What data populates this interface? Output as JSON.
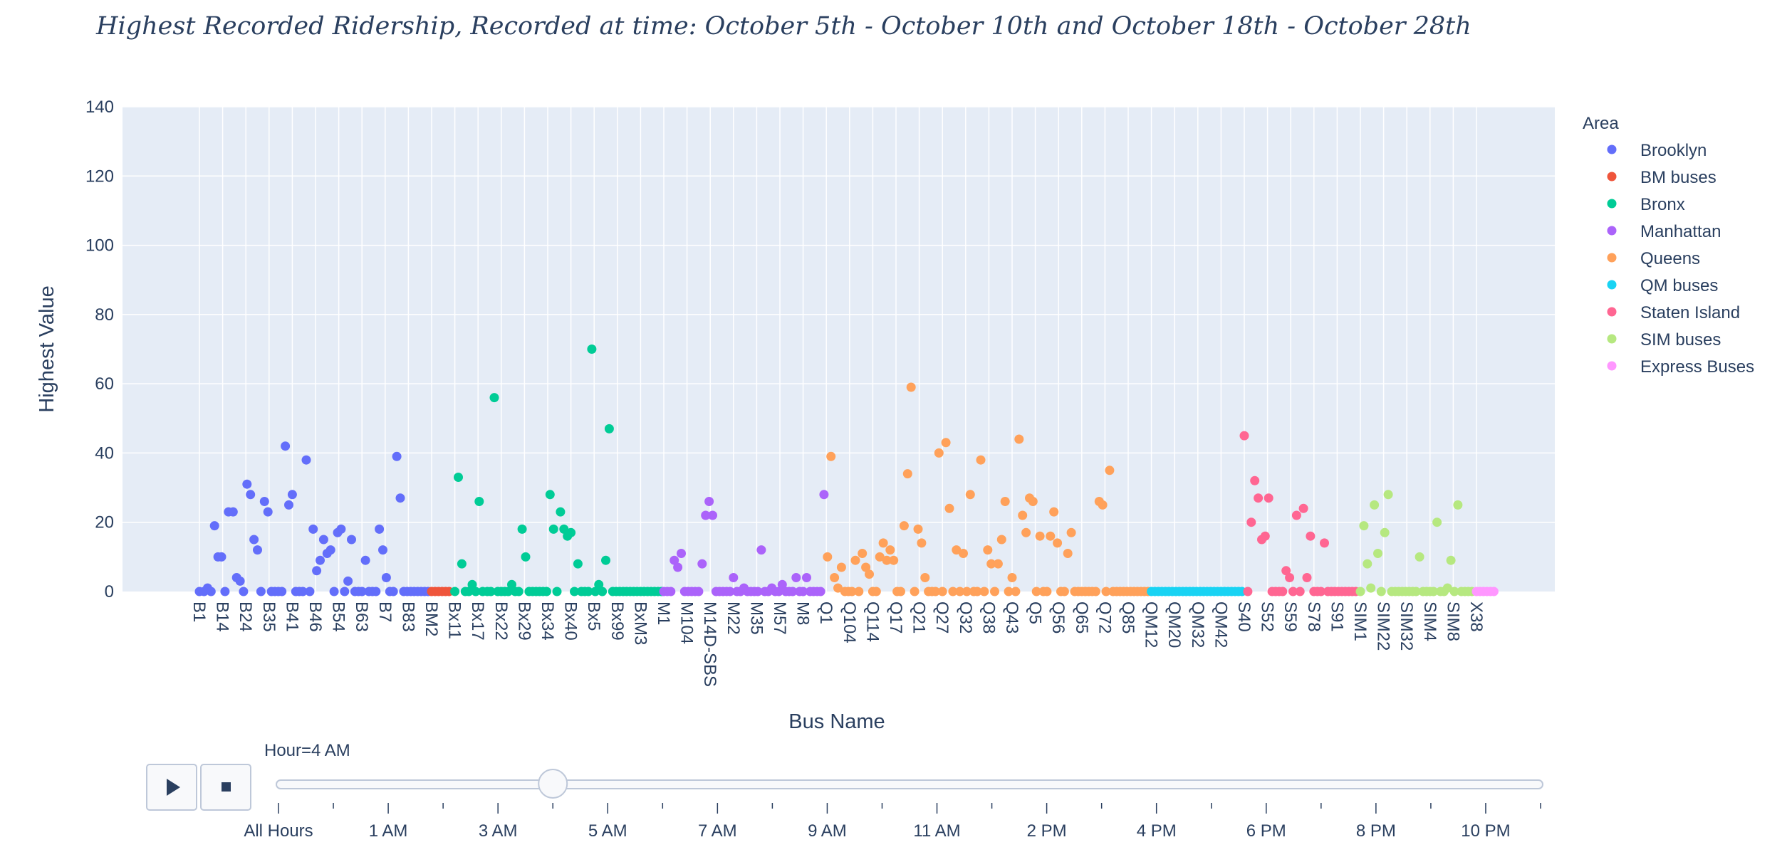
{
  "chart_data": {
    "type": "scatter",
    "title": "Highest Recorded Ridership, Recorded at time: October 5th - October 10th and October 18th - October 28th",
    "xlabel": "Bus Name",
    "ylabel": "Highest Value",
    "ylim": [
      0,
      140
    ],
    "yticks": [
      0,
      20,
      40,
      60,
      80,
      100,
      120,
      140
    ],
    "grid": true,
    "legend_title": "Area",
    "legend_position": "right",
    "categories": [
      "B1",
      "B14",
      "B24",
      "B35",
      "B41",
      "B46",
      "B54",
      "B63",
      "B7",
      "B83",
      "BM2",
      "Bx11",
      "Bx17",
      "Bx22",
      "Bx29",
      "Bx34",
      "Bx40",
      "Bx5",
      "Bx99",
      "BxM3",
      "M1",
      "M104",
      "M14D-SBS",
      "M22",
      "M35",
      "M57",
      "M8",
      "Q1",
      "Q104",
      "Q114",
      "Q17",
      "Q21",
      "Q27",
      "Q32",
      "Q38",
      "Q43",
      "Q5",
      "Q56",
      "Q65",
      "Q72",
      "Q85",
      "QM12",
      "QM20",
      "QM32",
      "QM42",
      "S40",
      "S52",
      "S59",
      "S78",
      "S91",
      "SIM1",
      "SIM22",
      "SIM32",
      "SIM4",
      "SIM8",
      "X38"
    ],
    "series": [
      {
        "name": "Brooklyn",
        "color": "#636efa",
        "x": [
          0.0,
          0.2,
          0.35,
          0.5,
          0.65,
          0.8,
          0.95,
          1.1,
          1.25,
          1.45,
          1.6,
          1.75,
          1.9,
          2.05,
          2.2,
          2.35,
          2.5,
          2.65,
          2.8,
          2.95,
          3.1,
          3.25,
          3.4,
          3.55,
          3.7,
          3.85,
          4.0,
          4.15,
          4.3,
          4.45,
          4.6,
          4.75,
          4.9,
          5.05,
          5.2,
          5.35,
          5.5,
          5.65,
          5.8,
          5.95,
          6.1,
          6.25,
          6.4,
          6.55,
          6.7,
          6.85,
          7.0,
          7.15,
          7.3,
          7.45,
          7.6,
          7.75,
          7.9,
          8.05,
          8.2,
          8.35,
          8.5,
          8.65,
          8.8,
          8.95,
          9.1,
          9.25,
          9.4,
          9.55,
          9.7,
          9.85
        ],
        "y": [
          0,
          0,
          1,
          0,
          19,
          10,
          10,
          0,
          23,
          23,
          4,
          3,
          0,
          31,
          28,
          15,
          12,
          0,
          26,
          23,
          0,
          0,
          0,
          0,
          42,
          25,
          28,
          0,
          0,
          0,
          38,
          0,
          18,
          6,
          9,
          15,
          11,
          12,
          0,
          17,
          18,
          0,
          3,
          15,
          0,
          0,
          0,
          9,
          0,
          0,
          0,
          18,
          12,
          4,
          0,
          0,
          39,
          27,
          0,
          0,
          0,
          0,
          0,
          0,
          0,
          0
        ]
      },
      {
        "name": "BM buses",
        "color": "#ef553b",
        "x": [
          10.0,
          10.15,
          10.3,
          10.45,
          10.6,
          10.75
        ],
        "y": [
          0,
          0,
          0,
          0,
          0,
          0
        ]
      },
      {
        "name": "Bronx",
        "color": "#00cc96",
        "x": [
          11.0,
          11.15,
          11.3,
          11.45,
          11.6,
          11.75,
          11.9,
          12.05,
          12.2,
          12.4,
          12.55,
          12.7,
          12.85,
          13.0,
          13.15,
          13.3,
          13.45,
          13.6,
          13.75,
          13.9,
          14.05,
          14.2,
          14.35,
          14.5,
          14.65,
          14.8,
          14.95,
          15.1,
          15.25,
          15.4,
          15.55,
          15.7,
          15.85,
          16.0,
          16.15,
          16.3,
          16.45,
          16.6,
          16.75,
          16.9,
          17.05,
          17.2,
          17.35,
          17.5,
          17.65,
          17.8,
          17.95,
          18.1,
          18.25,
          18.4,
          18.55,
          18.7,
          18.85,
          19.0,
          19.15,
          19.3,
          19.45,
          19.6,
          19.75,
          19.9
        ],
        "y": [
          0,
          33,
          8,
          0,
          0,
          2,
          0,
          26,
          0,
          0,
          0,
          56,
          0,
          0,
          0,
          0,
          2,
          0,
          0,
          18,
          10,
          0,
          0,
          0,
          0,
          0,
          0,
          28,
          18,
          0,
          23,
          18,
          16,
          17,
          0,
          8,
          0,
          0,
          0,
          70,
          0,
          2,
          0,
          9,
          47,
          0,
          0,
          0,
          0,
          0,
          0,
          0,
          0,
          0,
          0,
          0,
          0,
          0,
          0,
          0
        ]
      },
      {
        "name": "Manhattan",
        "color": "#ab63fa",
        "x": [
          20.0,
          20.15,
          20.3,
          20.45,
          20.6,
          20.75,
          20.9,
          21.05,
          21.2,
          21.35,
          21.5,
          21.65,
          21.8,
          21.95,
          22.1,
          22.25,
          22.4,
          22.55,
          22.7,
          22.85,
          23.0,
          23.15,
          23.3,
          23.45,
          23.6,
          23.75,
          23.9,
          24.05,
          24.2,
          24.35,
          24.5,
          24.65,
          24.8,
          24.95,
          25.1,
          25.25,
          25.4,
          25.55,
          25.7,
          25.85,
          26.0,
          26.15,
          26.3,
          26.45,
          26.6,
          26.75,
          26.9
        ],
        "y": [
          0,
          0,
          0,
          9,
          7,
          11,
          0,
          0,
          0,
          0,
          0,
          8,
          22,
          26,
          22,
          0,
          0,
          0,
          0,
          0,
          4,
          0,
          0,
          1,
          0,
          0,
          0,
          0,
          12,
          0,
          0,
          1,
          0,
          0,
          2,
          0,
          0,
          0,
          4,
          0,
          0,
          4,
          0,
          0,
          0,
          0,
          28
        ]
      },
      {
        "name": "Queens",
        "color": "#ffa15a",
        "x": [
          27.05,
          27.2,
          27.35,
          27.5,
          27.65,
          27.8,
          27.95,
          28.1,
          28.25,
          28.4,
          28.55,
          28.7,
          28.85,
          29.0,
          29.15,
          29.3,
          29.45,
          29.6,
          29.75,
          29.9,
          30.05,
          30.2,
          30.35,
          30.5,
          30.65,
          30.8,
          30.95,
          31.1,
          31.25,
          31.4,
          31.55,
          31.7,
          31.85,
          32.0,
          32.15,
          32.3,
          32.45,
          32.6,
          32.75,
          32.9,
          33.05,
          33.2,
          33.35,
          33.5,
          33.65,
          33.8,
          33.95,
          34.1,
          34.25,
          34.4,
          34.55,
          34.7,
          34.85,
          35.0,
          35.15,
          35.3,
          35.45,
          35.6,
          35.75,
          35.9,
          36.05,
          36.2,
          36.35,
          36.5,
          36.65,
          36.8,
          36.95,
          37.1,
          37.25,
          37.4,
          37.55,
          37.7,
          37.85,
          38.0,
          38.15,
          38.3,
          38.45,
          38.6,
          38.75,
          38.9,
          39.05,
          39.2,
          39.35,
          39.5,
          39.65,
          39.8,
          39.95,
          40.1,
          40.25,
          40.4,
          40.55,
          40.7,
          40.85
        ],
        "y": [
          10,
          39,
          4,
          1,
          7,
          0,
          0,
          0,
          9,
          0,
          11,
          7,
          5,
          0,
          0,
          10,
          14,
          9,
          12,
          9,
          0,
          0,
          19,
          34,
          59,
          0,
          18,
          14,
          4,
          0,
          0,
          0,
          40,
          0,
          43,
          24,
          0,
          12,
          0,
          11,
          0,
          28,
          0,
          0,
          38,
          0,
          12,
          8,
          0,
          8,
          15,
          26,
          0,
          4,
          0,
          44,
          22,
          17,
          27,
          26,
          0,
          16,
          0,
          0,
          16,
          23,
          14,
          0,
          0,
          11,
          17,
          0,
          0,
          0,
          0,
          0,
          0,
          0,
          26,
          25,
          0,
          35,
          0,
          0,
          0,
          0,
          0,
          0,
          0,
          0,
          0,
          0,
          0
        ]
      },
      {
        "name": "QM buses",
        "color": "#19d3f3",
        "x": [
          41.0,
          41.15,
          41.3,
          41.45,
          41.6,
          41.75,
          41.9,
          42.05,
          42.2,
          42.35,
          42.5,
          42.65,
          42.8,
          42.95,
          43.1,
          43.25,
          43.4,
          43.55,
          43.7,
          43.85,
          44.0,
          44.15,
          44.3,
          44.45,
          44.6,
          44.75,
          44.9
        ],
        "y": [
          0,
          0,
          0,
          0,
          0,
          0,
          0,
          0,
          0,
          0,
          0,
          0,
          0,
          0,
          0,
          0,
          0,
          0,
          0,
          0,
          0,
          0,
          0,
          0,
          0,
          0,
          0
        ]
      },
      {
        "name": "Staten Island",
        "color": "#ff6692",
        "x": [
          45.0,
          45.15,
          45.3,
          45.45,
          45.6,
          45.75,
          45.9,
          46.05,
          46.2,
          46.35,
          46.5,
          46.65,
          46.8,
          46.95,
          47.1,
          47.25,
          47.4,
          47.55,
          47.7,
          47.85,
          48.0,
          48.15,
          48.3,
          48.45,
          48.6,
          48.75,
          48.9,
          49.05,
          49.2,
          49.35,
          49.5,
          49.65,
          49.8
        ],
        "y": [
          45,
          0,
          20,
          32,
          27,
          15,
          16,
          27,
          0,
          0,
          0,
          0,
          6,
          4,
          0,
          22,
          0,
          24,
          4,
          16,
          0,
          0,
          0,
          14,
          0,
          0,
          0,
          0,
          0,
          0,
          0,
          0,
          0
        ]
      },
      {
        "name": "SIM buses",
        "color": "#b6e880",
        "x": [
          50.0,
          50.15,
          50.3,
          50.45,
          50.6,
          50.75,
          50.9,
          51.05,
          51.2,
          51.35,
          51.5,
          51.65,
          51.8,
          51.95,
          52.1,
          52.25,
          52.4,
          52.55,
          52.7,
          52.85,
          53.0,
          53.15,
          53.3,
          53.45,
          53.6,
          53.75,
          53.9,
          54.05,
          54.2,
          54.35,
          54.5,
          54.65,
          54.8
        ],
        "y": [
          0,
          19,
          8,
          1,
          25,
          11,
          0,
          17,
          28,
          0,
          0,
          0,
          0,
          0,
          0,
          0,
          0,
          10,
          0,
          0,
          0,
          0,
          20,
          0,
          0,
          1,
          9,
          0,
          25,
          0,
          0,
          0,
          0
        ]
      },
      {
        "name": "Express Buses",
        "color": "#ff97ff",
        "x": [
          55.0,
          55.15,
          55.3,
          55.45,
          55.6,
          55.75
        ],
        "y": [
          0,
          0,
          0,
          0,
          0,
          0
        ]
      }
    ]
  },
  "slider": {
    "current_label": "Hour=4 AM",
    "steps": [
      "All Hours",
      "1 AM",
      "3 AM",
      "5 AM",
      "7 AM",
      "9 AM",
      "11 AM",
      "2 PM",
      "4 PM",
      "6 PM",
      "8 PM",
      "10 PM"
    ],
    "total_steps": 24,
    "active_step": 5
  },
  "controls": {
    "play_icon": "play-icon",
    "stop_icon": "stop-icon"
  }
}
